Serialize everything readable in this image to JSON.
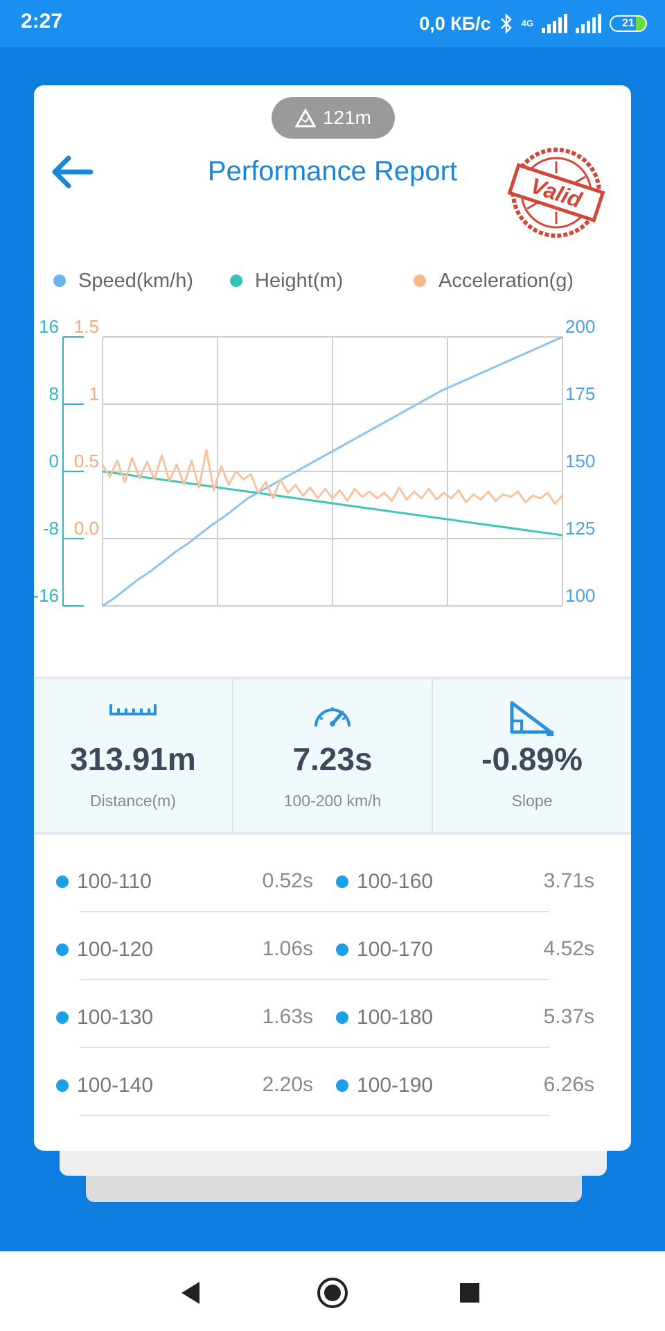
{
  "status_bar": {
    "time": "2:27",
    "speed": "0,0 КБ/с",
    "network": "4G",
    "battery": "21"
  },
  "altitude_pill": {
    "value": "121m"
  },
  "header": {
    "title": "Performance Report",
    "stamp_text": "Valid"
  },
  "legend": [
    {
      "label": "Speed(km/h)",
      "color": "#6ab4ec"
    },
    {
      "label": "Height(m)",
      "color": "#34c3b4"
    },
    {
      "label": "Acceleration(g)",
      "color": "#f9b68a"
    }
  ],
  "chart_data": {
    "type": "line",
    "y_axes": {
      "height": {
        "ticks": [
          "16",
          "8",
          "0",
          "-8",
          "-16"
        ],
        "range": [
          -16,
          16
        ],
        "color": "#34b6c2"
      },
      "acceleration": {
        "ticks": [
          "1.5",
          "1",
          "0.5",
          "0.0"
        ],
        "range": [
          -0.5,
          1.5
        ],
        "color": "#f2a97a"
      },
      "speed": {
        "ticks": [
          "200",
          "175",
          "150",
          "125",
          "100"
        ],
        "range": [
          100,
          200
        ],
        "color": "#4aa3e0"
      }
    },
    "grid": true,
    "series": [
      {
        "name": "Speed(km/h)",
        "axis": "speed",
        "color": "#8cc4ee",
        "values": [
          100,
          103,
          106.5,
          110,
          113,
          116.5,
          120,
          123,
          126.5,
          130,
          133,
          136.5,
          140,
          142.5,
          145,
          147.5,
          150,
          152.5,
          155,
          157.5,
          160,
          162.5,
          165,
          167.5,
          170,
          172.5,
          175,
          177.5,
          180,
          182,
          184,
          186,
          188,
          190,
          192,
          194,
          196,
          198,
          200
        ]
      },
      {
        "name": "Height(m)",
        "axis": "height",
        "color": "#3cc6b6",
        "values": [
          0,
          -0.2,
          -0.4,
          -0.6,
          -0.8,
          -1.0,
          -1.2,
          -1.4,
          -1.6,
          -1.8,
          -2.0,
          -2.2,
          -2.4,
          -2.6,
          -2.8,
          -3.0,
          -3.2,
          -3.4,
          -3.6,
          -3.8,
          -4.0,
          -4.2,
          -4.4,
          -4.6,
          -4.8,
          -5.0,
          -5.2,
          -5.4,
          -5.6,
          -5.8,
          -6.0,
          -6.2,
          -6.4,
          -6.6,
          -6.8,
          -7.0,
          -7.2,
          -7.4,
          -7.6
        ]
      },
      {
        "name": "Acceleration(g)",
        "axis": "acceleration",
        "color": "#f7c39e",
        "values": [
          0.55,
          0.46,
          0.58,
          0.42,
          0.6,
          0.45,
          0.57,
          0.44,
          0.62,
          0.43,
          0.55,
          0.4,
          0.58,
          0.38,
          0.66,
          0.36,
          0.54,
          0.4,
          0.5,
          0.44,
          0.48,
          0.34,
          0.42,
          0.3,
          0.44,
          0.34,
          0.4,
          0.32,
          0.38,
          0.3,
          0.37,
          0.3,
          0.36,
          0.28,
          0.37,
          0.31,
          0.35,
          0.3,
          0.34,
          0.28,
          0.38,
          0.29,
          0.35,
          0.3,
          0.37,
          0.29,
          0.34,
          0.3,
          0.36,
          0.27,
          0.33,
          0.29,
          0.35,
          0.28,
          0.33,
          0.31,
          0.35,
          0.27,
          0.32,
          0.3,
          0.34,
          0.26,
          0.32
        ]
      }
    ]
  },
  "stats": [
    {
      "icon": "ruler-icon",
      "value": "313.91m",
      "label": "Distance(m)"
    },
    {
      "icon": "speedometer-icon",
      "value": "7.23s",
      "label": "100-200 km/h"
    },
    {
      "icon": "slope-icon",
      "value": "-0.89%",
      "label": "Slope"
    }
  ],
  "splits": [
    {
      "left_range": "100-110",
      "left_time": "0.52s",
      "right_range": "100-160",
      "right_time": "3.71s"
    },
    {
      "left_range": "100-120",
      "left_time": "1.06s",
      "right_range": "100-170",
      "right_time": "4.52s"
    },
    {
      "left_range": "100-130",
      "left_time": "1.63s",
      "right_range": "100-180",
      "right_time": "5.37s"
    },
    {
      "left_range": "100-140",
      "left_time": "2.20s",
      "right_range": "100-190",
      "right_time": "6.26s"
    }
  ],
  "nav": {
    "back": "back-triangle-icon",
    "home": "home-circle-icon",
    "recents": "recents-square-icon"
  }
}
